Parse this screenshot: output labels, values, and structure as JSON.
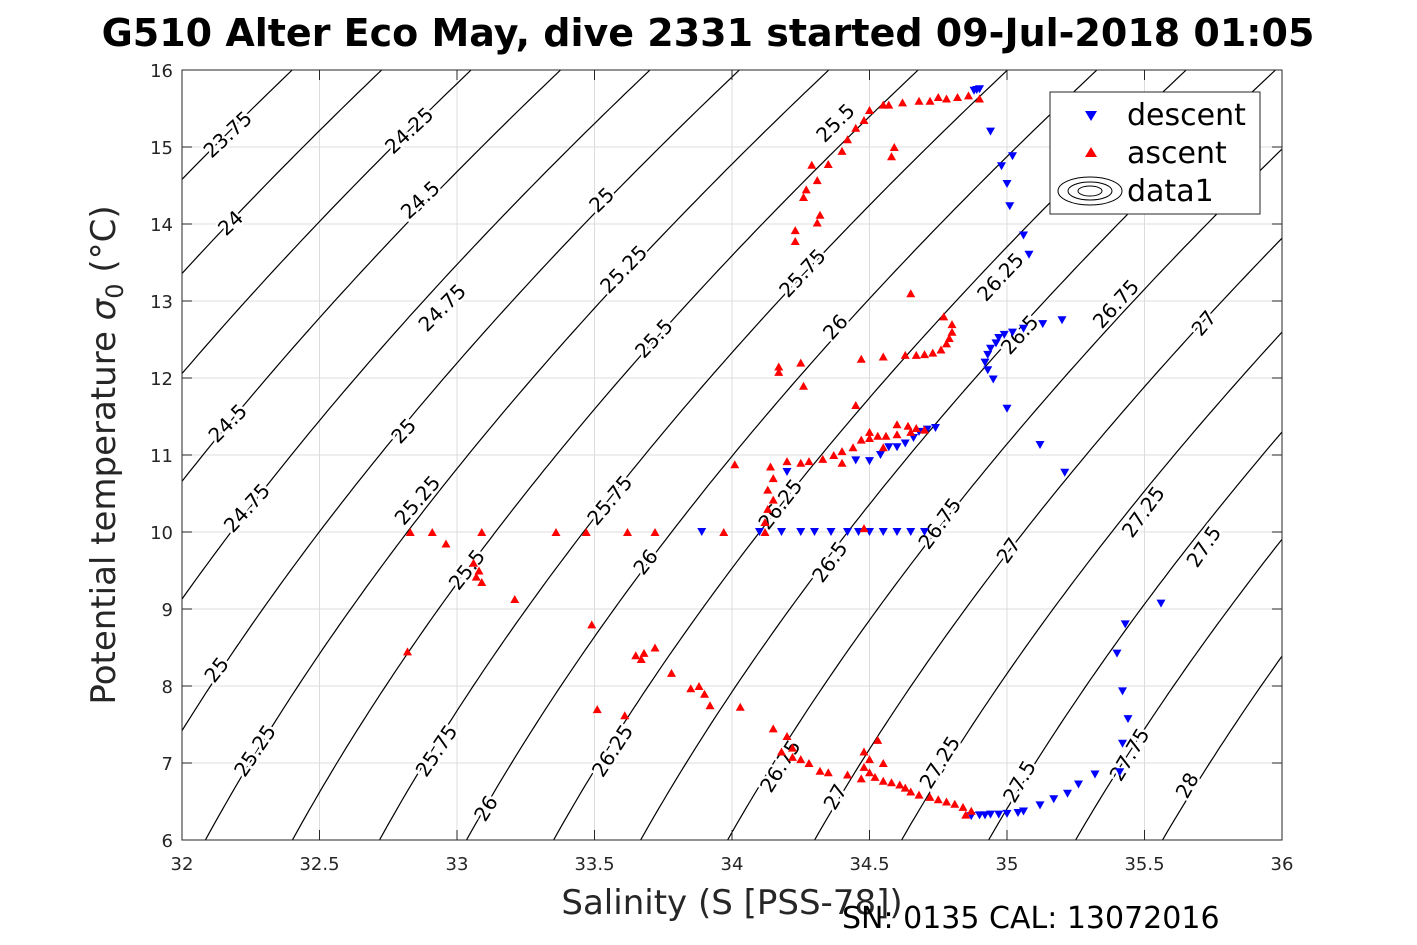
{
  "title": "G510 Alter Eco May, dive 2331 started 09-Jul-2018 01:05",
  "footer": "SN: 0135  CAL: 13072016",
  "colors": {
    "descent": "#0000ff",
    "ascent": "#ff0000",
    "contour": "#000000",
    "grid": "#dcdcdc",
    "axis": "#262626"
  },
  "chart_data": {
    "type": "scatter",
    "xlabel": "Salinity (S [PSS-78])",
    "ylabel_main": "Potential temperature ",
    "ylabel_sigma": "σ",
    "ylabel_sub": "0",
    "ylabel_unit": " (°C)",
    "xlim": [
      32,
      36
    ],
    "ylim": [
      6,
      16
    ],
    "xticks": [
      32,
      32.5,
      33,
      33.5,
      34,
      34.5,
      35,
      35.5,
      36
    ],
    "xtick_labels": [
      "32",
      "32.5",
      "33",
      "33.5",
      "34",
      "34.5",
      "35",
      "35.5",
      "36"
    ],
    "yticks": [
      6,
      7,
      8,
      9,
      10,
      11,
      12,
      13,
      14,
      15,
      16
    ],
    "ytick_labels": [
      "6",
      "7",
      "8",
      "9",
      "10",
      "11",
      "12",
      "13",
      "14",
      "15",
      "16"
    ],
    "grid": true,
    "legend": {
      "position": "top-right",
      "entries": [
        "descent",
        "ascent",
        "data1"
      ]
    },
    "contours": {
      "levels": [
        23.75,
        24,
        24.25,
        24.5,
        24.75,
        25,
        25.25,
        25.5,
        25.75,
        26,
        26.25,
        26.5,
        26.75,
        27,
        27.25,
        27.5,
        27.75,
        28
      ],
      "labels": [
        {
          "text": "23.75",
          "x": 32.17,
          "y": 15.15,
          "angle": -43
        },
        {
          "text": "24",
          "x": 32.18,
          "y": 14.0,
          "angle": -43
        },
        {
          "text": "24.25",
          "x": 32.83,
          "y": 15.2,
          "angle": -43
        },
        {
          "text": "24.5",
          "x": 32.87,
          "y": 14.3,
          "angle": -43
        },
        {
          "text": "24.5",
          "x": 32.17,
          "y": 11.4,
          "angle": -45
        },
        {
          "text": "24.75",
          "x": 32.95,
          "y": 12.9,
          "angle": -45
        },
        {
          "text": "24.75",
          "x": 32.24,
          "y": 10.3,
          "angle": -48
        },
        {
          "text": "25",
          "x": 33.53,
          "y": 14.3,
          "angle": -44
        },
        {
          "text": "25",
          "x": 32.81,
          "y": 11.3,
          "angle": -47
        },
        {
          "text": "25",
          "x": 32.13,
          "y": 8.2,
          "angle": -52
        },
        {
          "text": "25.25",
          "x": 33.61,
          "y": 13.4,
          "angle": -46
        },
        {
          "text": "25.25",
          "x": 32.86,
          "y": 10.4,
          "angle": -49
        },
        {
          "text": "25.25",
          "x": 32.27,
          "y": 7.15,
          "angle": -56
        },
        {
          "text": "25.5",
          "x": 34.38,
          "y": 15.3,
          "angle": -45
        },
        {
          "text": "25.5",
          "x": 33.72,
          "y": 12.5,
          "angle": -47
        },
        {
          "text": "25.5",
          "x": 33.04,
          "y": 9.5,
          "angle": -52
        },
        {
          "text": "25.75",
          "x": 34.26,
          "y": 13.35,
          "angle": -47
        },
        {
          "text": "25.75",
          "x": 33.56,
          "y": 10.4,
          "angle": -50
        },
        {
          "text": "25.75",
          "x": 32.93,
          "y": 7.15,
          "angle": -56
        },
        {
          "text": "26",
          "x": 34.38,
          "y": 12.65,
          "angle": -48
        },
        {
          "text": "26",
          "x": 33.69,
          "y": 9.6,
          "angle": -52
        },
        {
          "text": "26",
          "x": 33.11,
          "y": 6.4,
          "angle": -58
        },
        {
          "text": "26.25",
          "x": 34.98,
          "y": 13.3,
          "angle": -47
        },
        {
          "text": "26.25",
          "x": 34.18,
          "y": 10.35,
          "angle": -52
        },
        {
          "text": "26.25",
          "x": 33.57,
          "y": 7.15,
          "angle": -57
        },
        {
          "text": "26.5",
          "x": 35.05,
          "y": 12.55,
          "angle": -48
        },
        {
          "text": "26.5",
          "x": 34.36,
          "y": 9.6,
          "angle": -54
        },
        {
          "text": "26.75",
          "x": 35.4,
          "y": 12.95,
          "angle": -48
        },
        {
          "text": "26.75",
          "x": 34.76,
          "y": 10.1,
          "angle": -54
        },
        {
          "text": "26.75",
          "x": 34.18,
          "y": 6.95,
          "angle": -58
        },
        {
          "text": "27",
          "x": 35.72,
          "y": 12.7,
          "angle": -50
        },
        {
          "text": "27",
          "x": 35.01,
          "y": 9.75,
          "angle": -55
        },
        {
          "text": "27",
          "x": 34.38,
          "y": 6.55,
          "angle": -60
        },
        {
          "text": "27.25",
          "x": 35.5,
          "y": 10.25,
          "angle": -54
        },
        {
          "text": "27.25",
          "x": 34.76,
          "y": 7.0,
          "angle": -58
        },
        {
          "text": "27.5",
          "x": 35.72,
          "y": 9.8,
          "angle": -56
        },
        {
          "text": "27.5",
          "x": 35.05,
          "y": 6.75,
          "angle": -60
        },
        {
          "text": "27.75",
          "x": 35.45,
          "y": 7.1,
          "angle": -59
        },
        {
          "text": "28",
          "x": 35.66,
          "y": 6.7,
          "angle": -61
        }
      ]
    },
    "series": [
      {
        "name": "descent",
        "marker": "triangle-down",
        "points": [
          [
            34.88,
            15.73
          ],
          [
            34.89,
            15.74
          ],
          [
            34.9,
            15.75
          ],
          [
            34.94,
            15.2
          ],
          [
            34.98,
            14.75
          ],
          [
            35.02,
            14.88
          ],
          [
            35.0,
            14.52
          ],
          [
            35.01,
            14.23
          ],
          [
            35.06,
            13.85
          ],
          [
            35.08,
            13.6
          ],
          [
            35.2,
            12.75
          ],
          [
            35.13,
            12.7
          ],
          [
            35.06,
            12.64
          ],
          [
            35.02,
            12.59
          ],
          [
            34.99,
            12.56
          ],
          [
            34.97,
            12.52
          ],
          [
            34.96,
            12.45
          ],
          [
            34.94,
            12.38
          ],
          [
            34.93,
            12.3
          ],
          [
            34.92,
            12.2
          ],
          [
            34.93,
            12.1
          ],
          [
            34.95,
            11.98
          ],
          [
            35.0,
            11.6
          ],
          [
            35.12,
            11.13
          ],
          [
            35.21,
            10.77
          ],
          [
            34.74,
            11.35
          ],
          [
            34.71,
            11.33
          ],
          [
            34.68,
            11.3
          ],
          [
            34.66,
            11.22
          ],
          [
            34.63,
            11.15
          ],
          [
            34.6,
            11.1
          ],
          [
            34.57,
            11.1
          ],
          [
            34.54,
            11.0
          ],
          [
            34.5,
            10.92
          ],
          [
            34.45,
            10.93
          ],
          [
            33.89,
            10.0
          ],
          [
            34.1,
            10.0
          ],
          [
            34.18,
            10.0
          ],
          [
            34.25,
            10.0
          ],
          [
            34.3,
            10.0
          ],
          [
            34.36,
            10.0
          ],
          [
            34.42,
            10.0
          ],
          [
            34.46,
            10.0
          ],
          [
            34.5,
            10.0
          ],
          [
            34.55,
            10.0
          ],
          [
            34.6,
            10.0
          ],
          [
            34.65,
            10.0
          ],
          [
            34.7,
            10.0
          ],
          [
            34.2,
            10.78
          ],
          [
            35.56,
            9.07
          ],
          [
            35.43,
            8.8
          ],
          [
            35.4,
            8.42
          ],
          [
            35.42,
            7.93
          ],
          [
            35.44,
            7.57
          ],
          [
            35.42,
            7.25
          ],
          [
            35.41,
            6.88
          ],
          [
            35.32,
            6.85
          ],
          [
            35.26,
            6.72
          ],
          [
            35.22,
            6.6
          ],
          [
            35.17,
            6.53
          ],
          [
            35.12,
            6.45
          ],
          [
            35.06,
            6.37
          ],
          [
            35.04,
            6.35
          ],
          [
            35.0,
            6.34
          ],
          [
            34.97,
            6.33
          ],
          [
            34.94,
            6.33
          ],
          [
            34.92,
            6.32
          ],
          [
            34.9,
            6.32
          ],
          [
            34.87,
            6.31
          ]
        ]
      },
      {
        "name": "ascent",
        "marker": "triangle-up",
        "points": [
          [
            34.9,
            15.63
          ],
          [
            34.86,
            15.67
          ],
          [
            34.82,
            15.65
          ],
          [
            34.78,
            15.63
          ],
          [
            34.75,
            15.65
          ],
          [
            34.72,
            15.6
          ],
          [
            34.68,
            15.6
          ],
          [
            34.62,
            15.58
          ],
          [
            34.57,
            15.55
          ],
          [
            34.5,
            15.48
          ],
          [
            34.48,
            15.35
          ],
          [
            34.45,
            15.25
          ],
          [
            34.42,
            15.1
          ],
          [
            34.4,
            14.95
          ],
          [
            34.35,
            14.78
          ],
          [
            34.58,
            14.88
          ],
          [
            34.59,
            15.0
          ],
          [
            34.55,
            15.55
          ],
          [
            34.29,
            14.77
          ],
          [
            34.31,
            14.57
          ],
          [
            34.27,
            14.45
          ],
          [
            34.26,
            14.35
          ],
          [
            34.32,
            14.12
          ],
          [
            34.31,
            14.02
          ],
          [
            34.23,
            13.92
          ],
          [
            34.23,
            13.78
          ],
          [
            34.65,
            13.1
          ],
          [
            34.77,
            12.8
          ],
          [
            34.8,
            12.7
          ],
          [
            34.8,
            12.6
          ],
          [
            34.79,
            12.52
          ],
          [
            34.78,
            12.45
          ],
          [
            34.76,
            12.37
          ],
          [
            34.73,
            12.33
          ],
          [
            34.7,
            12.31
          ],
          [
            34.67,
            12.3
          ],
          [
            34.63,
            12.3
          ],
          [
            34.55,
            12.28
          ],
          [
            34.47,
            12.25
          ],
          [
            34.25,
            12.2
          ],
          [
            34.17,
            12.15
          ],
          [
            34.17,
            12.08
          ],
          [
            34.26,
            11.9
          ],
          [
            34.45,
            11.65
          ],
          [
            34.6,
            11.4
          ],
          [
            34.64,
            11.38
          ],
          [
            34.67,
            11.35
          ],
          [
            34.7,
            11.33
          ],
          [
            34.65,
            11.3
          ],
          [
            34.6,
            11.27
          ],
          [
            34.56,
            11.25
          ],
          [
            34.53,
            11.25
          ],
          [
            34.5,
            11.22
          ],
          [
            34.47,
            11.2
          ],
          [
            34.44,
            11.1
          ],
          [
            34.4,
            11.05
          ],
          [
            34.37,
            11.0
          ],
          [
            34.33,
            10.95
          ],
          [
            34.28,
            10.92
          ],
          [
            34.25,
            10.9
          ],
          [
            34.5,
            11.3
          ],
          [
            34.55,
            11.1
          ],
          [
            34.4,
            10.9
          ],
          [
            34.2,
            10.92
          ],
          [
            34.01,
            10.88
          ],
          [
            34.14,
            10.85
          ],
          [
            34.15,
            10.7
          ],
          [
            34.13,
            10.55
          ],
          [
            34.15,
            10.42
          ],
          [
            34.13,
            10.3
          ],
          [
            34.12,
            10.13
          ],
          [
            34.12,
            10.0
          ],
          [
            34.48,
            10.05
          ],
          [
            33.97,
            10.0
          ],
          [
            33.72,
            10.0
          ],
          [
            33.62,
            10.0
          ],
          [
            33.47,
            10.0
          ],
          [
            33.36,
            10.0
          ],
          [
            33.09,
            10.0
          ],
          [
            32.91,
            10.0
          ],
          [
            32.83,
            10.0
          ],
          [
            32.96,
            9.85
          ],
          [
            33.06,
            9.6
          ],
          [
            33.08,
            9.5
          ],
          [
            33.07,
            9.42
          ],
          [
            33.09,
            9.35
          ],
          [
            33.21,
            9.13
          ],
          [
            33.49,
            8.8
          ],
          [
            33.72,
            8.5
          ],
          [
            33.68,
            8.43
          ],
          [
            33.65,
            8.4
          ],
          [
            33.67,
            8.35
          ],
          [
            33.78,
            8.17
          ],
          [
            33.85,
            7.97
          ],
          [
            33.88,
            8.0
          ],
          [
            33.9,
            7.9
          ],
          [
            33.92,
            7.75
          ],
          [
            34.03,
            7.73
          ],
          [
            33.51,
            7.7
          ],
          [
            33.61,
            7.62
          ],
          [
            34.15,
            7.45
          ],
          [
            34.2,
            7.35
          ],
          [
            34.22,
            7.2
          ],
          [
            34.18,
            7.15
          ],
          [
            34.22,
            7.08
          ],
          [
            34.25,
            7.05
          ],
          [
            34.28,
            7.0
          ],
          [
            34.32,
            6.9
          ],
          [
            34.35,
            6.88
          ],
          [
            34.42,
            6.85
          ],
          [
            34.48,
            6.95
          ],
          [
            34.5,
            6.88
          ],
          [
            34.52,
            6.82
          ],
          [
            34.55,
            6.77
          ],
          [
            34.58,
            6.75
          ],
          [
            34.61,
            6.72
          ],
          [
            34.63,
            6.68
          ],
          [
            34.65,
            6.63
          ],
          [
            34.68,
            6.59
          ],
          [
            34.72,
            6.56
          ],
          [
            34.75,
            6.53
          ],
          [
            34.78,
            6.5
          ],
          [
            34.81,
            6.47
          ],
          [
            34.84,
            6.43
          ],
          [
            34.87,
            6.38
          ],
          [
            34.85,
            6.33
          ],
          [
            32.82,
            8.45
          ],
          [
            34.48,
            7.15
          ],
          [
            34.5,
            7.05
          ],
          [
            34.47,
            6.8
          ],
          [
            34.53,
            7.3
          ],
          [
            34.55,
            7.0
          ]
        ]
      }
    ]
  }
}
